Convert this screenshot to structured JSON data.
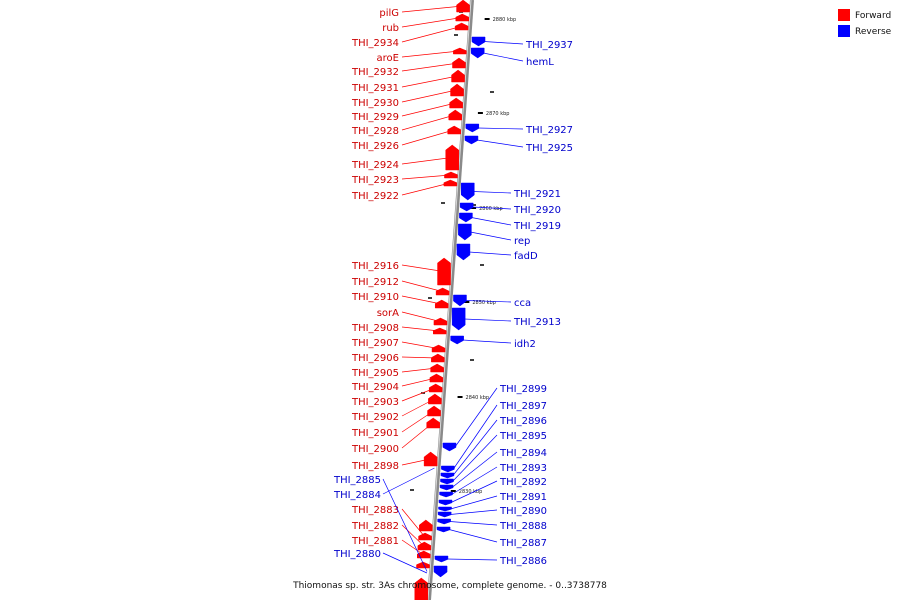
{
  "caption": "Thiomonas sp. str. 3As chromosome, complete genome. - 0..3738778",
  "legend": {
    "forward": {
      "label": "Forward",
      "color": "#ff0000"
    },
    "reverse": {
      "label": "Reverse",
      "color": "#0000ff"
    }
  },
  "axis_ticks": [
    "2880 kbp",
    "2870 kbp",
    "2860 kbp",
    "2850 kbp",
    "2840 kbp",
    "2830 kbp"
  ],
  "forward_genes": [
    "pilG",
    "rub",
    "THI_2934",
    "aroE",
    "THI_2932",
    "THI_2931",
    "THI_2930",
    "THI_2929",
    "THI_2928",
    "THI_2926",
    "THI_2924",
    "THI_2923",
    "THI_2922",
    "THI_2916",
    "THI_2912",
    "THI_2910",
    "sorA",
    "THI_2908",
    "THI_2907",
    "THI_2906",
    "THI_2905",
    "THI_2904",
    "THI_2903",
    "THI_2902",
    "THI_2901",
    "THI_2900",
    "THI_2898",
    "THI_2883",
    "THI_2882",
    "THI_2881"
  ],
  "reverse_genes": [
    "THI_2937",
    "hemL",
    "THI_2927",
    "THI_2925",
    "THI_2921",
    "THI_2920",
    "THI_2919",
    "rep",
    "fadD",
    "cca",
    "THI_2913",
    "idh2",
    "THI_2899",
    "THI_2897",
    "THI_2896",
    "THI_2895",
    "THI_2894",
    "THI_2893",
    "THI_2892",
    "THI_2891",
    "THI_2890",
    "THI_2888",
    "THI_2887",
    "THI_2886",
    "THI_2885",
    "THI_2884",
    "THI_2880"
  ]
}
